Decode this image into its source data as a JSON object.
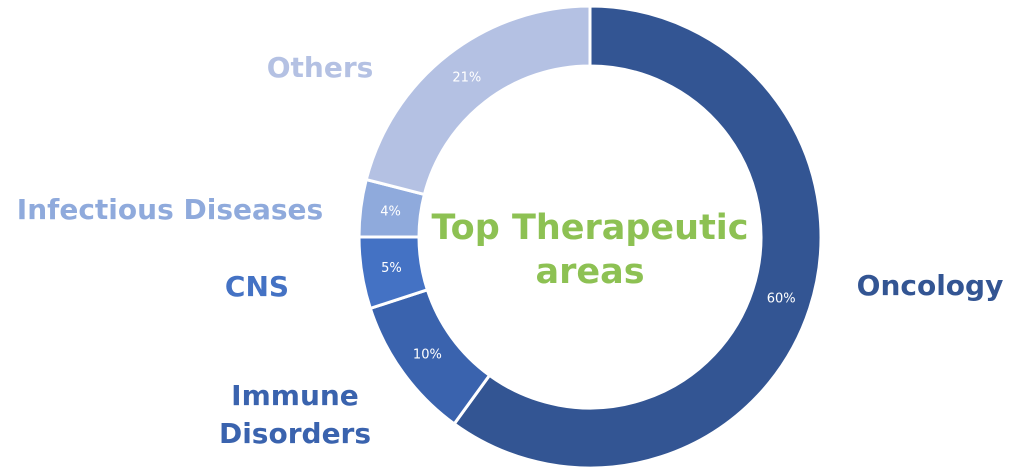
{
  "chart_data": {
    "type": "donut",
    "title": "Top Therapeutic areas",
    "title_color": "#8dc153",
    "categories": [
      "Oncology",
      "Immune Disorders",
      "CNS",
      "Infectious Diseases",
      "Others"
    ],
    "values": [
      60,
      10,
      5,
      4,
      21
    ],
    "value_labels": [
      "60%",
      "10%",
      "5%",
      "4%",
      "21%"
    ],
    "colors": [
      "#335593",
      "#3a63ae",
      "#4472c4",
      "#8faadc",
      "#b4c1e3"
    ]
  }
}
